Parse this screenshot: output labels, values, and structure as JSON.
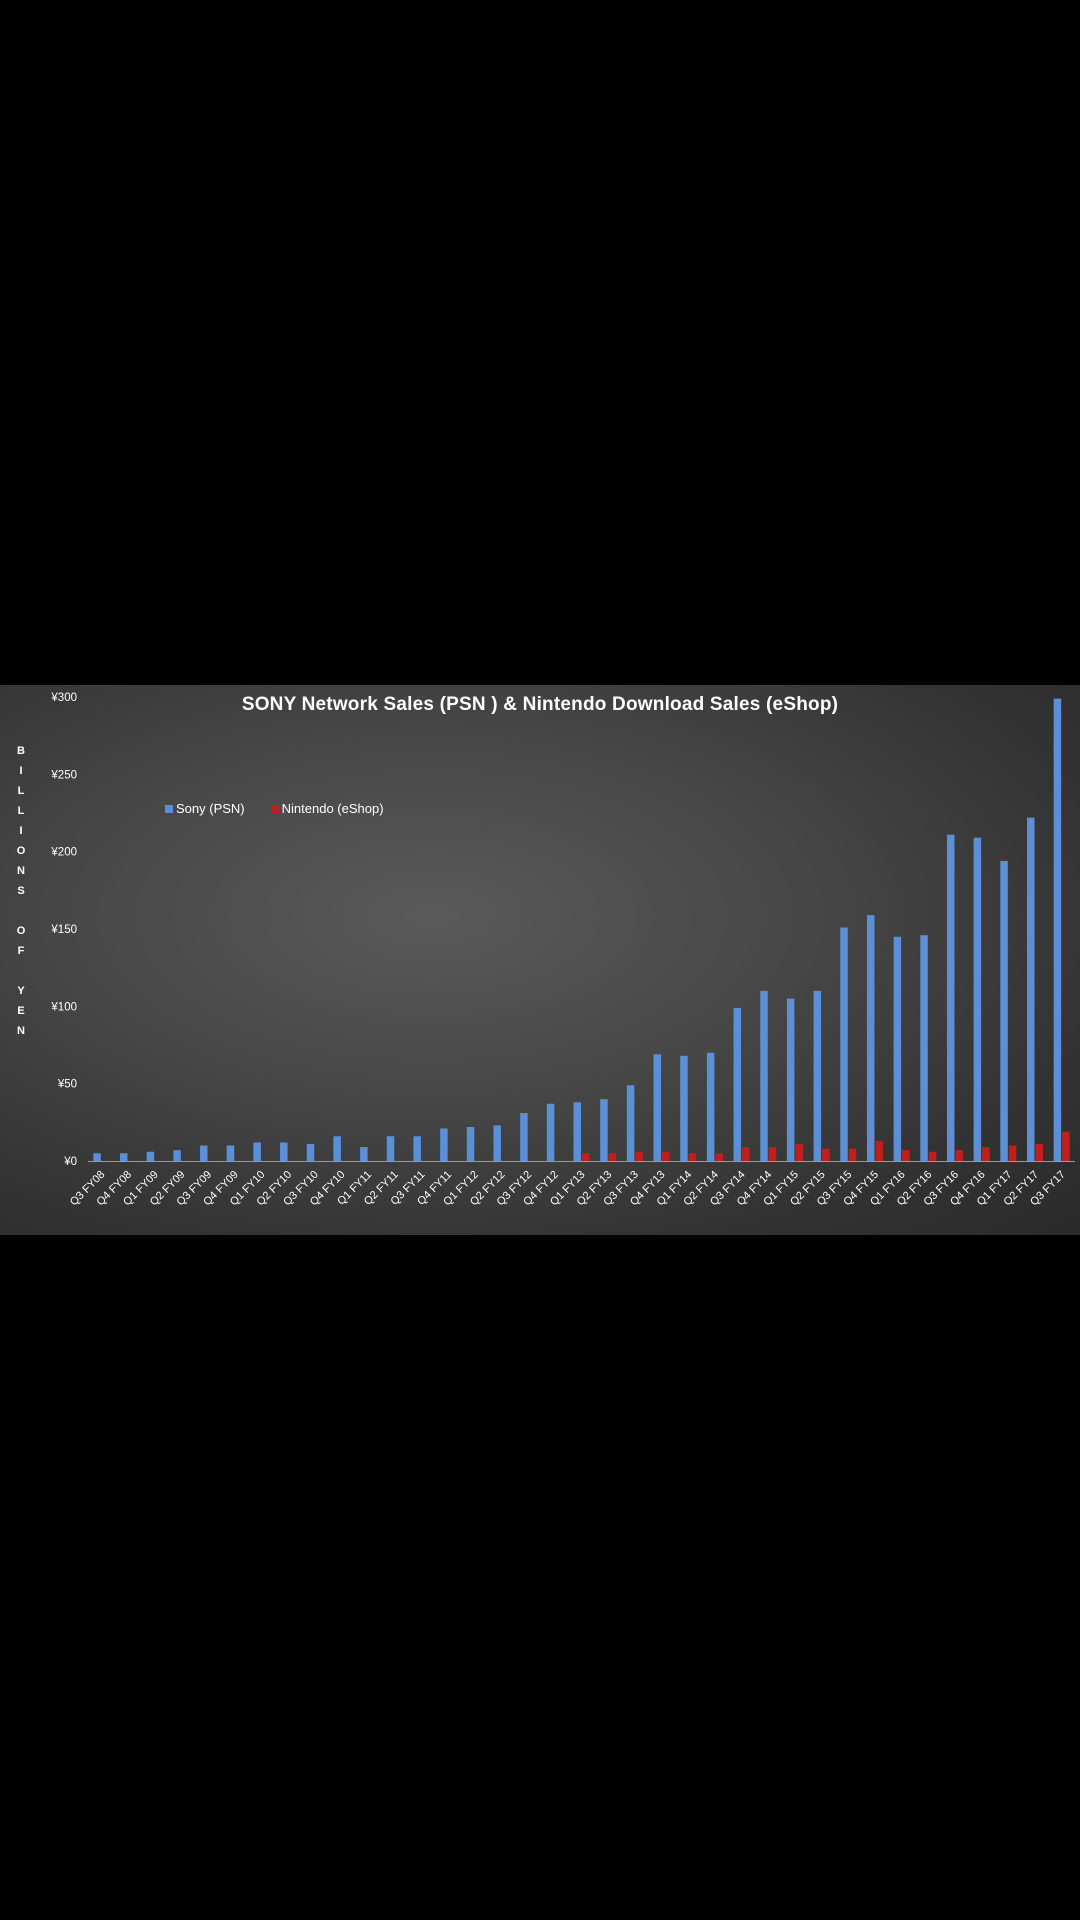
{
  "chart_data": {
    "type": "bar",
    "title": "SONY Network Sales (PSN ) & Nintendo Download Sales (eShop)",
    "ylabel": "BILLIONS OF YEN",
    "ylabel_display": "B\nI\nL\nL\nI\nO\nN\nS\n\nO\nF\n\nY\nE\nN",
    "ylim": [
      0,
      300
    ],
    "yticks": [
      0,
      50,
      100,
      150,
      200,
      250,
      300
    ],
    "ytick_labels": [
      "¥0",
      "¥50",
      "¥100",
      "¥150",
      "¥200",
      "¥250",
      "¥300"
    ],
    "legend_position": "top-left",
    "grid": false,
    "categories": [
      "Q3 FY08",
      "Q4 FY08",
      "Q1 FY09",
      "Q2 FY09",
      "Q3 FY09",
      "Q4 FY09",
      "Q1 FY10",
      "Q2 FY10",
      "Q3 FY10",
      "Q4 FY10",
      "Q1 FY11",
      "Q2 FY11",
      "Q3 FY11",
      "Q4 FY11",
      "Q1 FY12",
      "Q2 FY12",
      "Q3 FY12",
      "Q4 FY12",
      "Q1 FY13",
      "Q2 FY13",
      "Q3 FY13",
      "Q4 FY13",
      "Q1 FY14",
      "Q2 FY14",
      "Q3 FY14",
      "Q4 FY14",
      "Q1 FY15",
      "Q2 FY15",
      "Q3 FY15",
      "Q4 FY15",
      "Q1 FY16",
      "Q2 FY16",
      "Q3 FY16",
      "Q4 FY16",
      "Q1 FY17",
      "Q2 FY17",
      "Q3 FY17"
    ],
    "series": [
      {
        "name": "Sony (PSN)",
        "color": "#5b8fd6",
        "values": [
          5,
          5,
          6,
          7,
          10,
          10,
          12,
          12,
          11,
          16,
          9,
          16,
          16,
          21,
          22,
          23,
          31,
          37,
          38,
          40,
          49,
          69,
          68,
          70,
          99,
          110,
          105,
          110,
          151,
          159,
          145,
          146,
          211,
          209,
          194,
          222,
          299
        ]
      },
      {
        "name": "Nintendo (eShop)",
        "color": "#c0201d",
        "values": [
          0,
          0,
          0,
          0,
          0,
          0,
          0,
          0,
          0,
          0,
          0,
          0,
          0,
          0,
          0,
          0,
          0,
          0,
          5,
          5,
          6,
          6,
          5,
          5,
          9,
          9,
          11,
          8,
          8,
          13,
          7,
          6,
          7,
          9,
          10,
          11,
          19
        ]
      }
    ]
  }
}
